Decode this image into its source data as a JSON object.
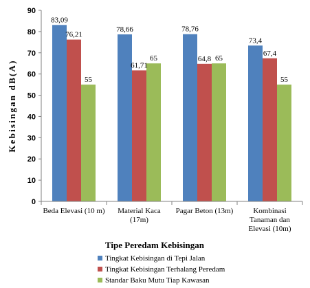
{
  "chart_data": {
    "type": "bar",
    "xlabel": "Tipe Peredam Kebisingan",
    "ylabel": "Kebisingan  dB(A)",
    "ylim": [
      0,
      90
    ],
    "yticks": [
      "0",
      "10",
      "20",
      "30",
      "40",
      "50",
      "60",
      "70",
      "80",
      "90"
    ],
    "categories": [
      [
        "Beda Elevasi (10 m)"
      ],
      [
        "Material Kaca",
        "(17m)"
      ],
      [
        "Pagar Beton (13m)"
      ],
      [
        "Kombinasi",
        "Tanaman dan",
        "Elevasi (10m)"
      ]
    ],
    "series": [
      {
        "name": "Tingkat Kebisingan di Tepi Jalan",
        "color": "#4f81bd",
        "values": [
          83.09,
          78.66,
          78.76,
          73.4
        ],
        "labels": [
          "83,09",
          "78,66",
          "78,76",
          "73,4"
        ]
      },
      {
        "name": "Tingkat Kebisingan Terhalang Peredam",
        "color": "#c0504d",
        "values": [
          76.21,
          61.71,
          64.8,
          67.4
        ],
        "labels": [
          "76,21",
          "61,71",
          "64,8",
          "67,4"
        ]
      },
      {
        "name": "Standar Baku Mutu Tiap Kawasan",
        "color": "#9bbb59",
        "values": [
          55,
          65,
          65,
          55
        ],
        "labels": [
          "55",
          "65",
          "65",
          "55"
        ]
      }
    ],
    "grid": false,
    "legend": "bottom"
  }
}
